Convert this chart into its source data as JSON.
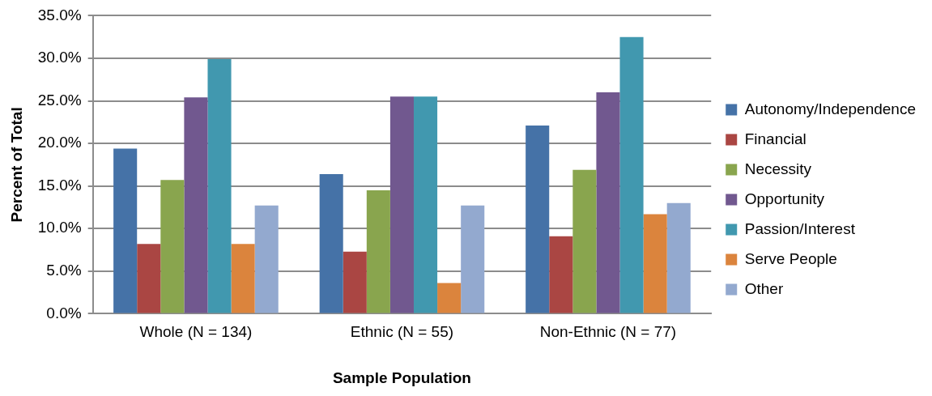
{
  "chart_data": {
    "type": "bar",
    "xlabel": "Sample Population",
    "ylabel": "Percent of Total",
    "categories": [
      "Whole (N = 134)",
      "Ethnic (N = 55)",
      "Non-Ethnic (N = 77)"
    ],
    "series": [
      {
        "name": "Autonomy/Independence",
        "color": "#4572a7",
        "values": [
          19.4,
          16.4,
          22.1
        ]
      },
      {
        "name": "Financial",
        "color": "#aa4643",
        "values": [
          8.2,
          7.3,
          9.1
        ]
      },
      {
        "name": "Necessity",
        "color": "#89a54e",
        "values": [
          15.7,
          14.5,
          16.9
        ]
      },
      {
        "name": "Opportunity",
        "color": "#71588f",
        "values": [
          25.4,
          25.5,
          26.0
        ]
      },
      {
        "name": "Passion/Interest",
        "color": "#4198af",
        "values": [
          29.9,
          25.5,
          32.5
        ]
      },
      {
        "name": "Serve People",
        "color": "#db843d",
        "values": [
          8.2,
          3.6,
          11.7
        ]
      },
      {
        "name": "Other",
        "color": "#93a9cf",
        "values": [
          12.7,
          12.7,
          13.0
        ]
      }
    ],
    "ylim": [
      0,
      35
    ],
    "yticks": [
      {
        "value": 0,
        "label": "0.0%"
      },
      {
        "value": 5,
        "label": "5.0%"
      },
      {
        "value": 10,
        "label": "10.0%"
      },
      {
        "value": 15,
        "label": "15.0%"
      },
      {
        "value": 20,
        "label": "20.0%"
      },
      {
        "value": 25,
        "label": "25.0%"
      },
      {
        "value": 30,
        "label": "30.0%"
      },
      {
        "value": 35,
        "label": "35.0%"
      }
    ],
    "grid": "y",
    "legend": "right"
  }
}
